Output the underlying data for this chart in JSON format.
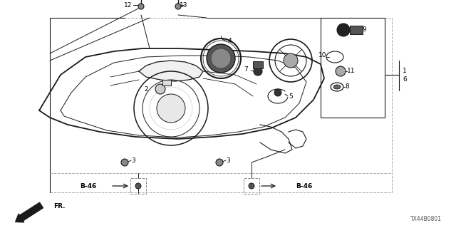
{
  "bg_color": "#ffffff",
  "lc": "#1a1a1a",
  "dc": "#888888",
  "diagram_id": "TX44B0801",
  "fig_w": 6.4,
  "fig_h": 3.2,
  "dpi": 100,
  "xlim": [
    0,
    640
  ],
  "ylim": [
    0,
    320
  ]
}
